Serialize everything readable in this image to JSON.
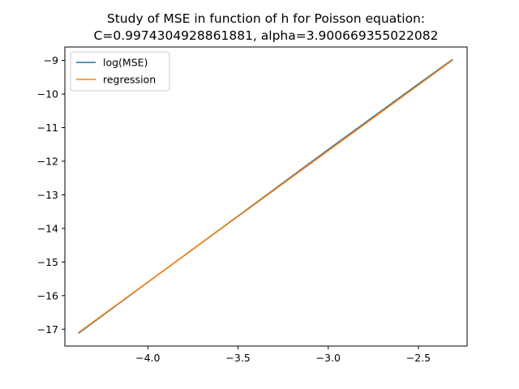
{
  "chart_data": {
    "type": "line",
    "title_lines": [
      "Study of MSE in function of h for Poisson equation:",
      "C=0.9974304928861881, alpha=3.900669355022082"
    ],
    "xlabel": "",
    "ylabel": "",
    "xlim": [
      -4.46,
      -2.23
    ],
    "ylim": [
      -17.5,
      -8.6
    ],
    "xticks": [
      -4.0,
      -3.5,
      -3.0,
      -2.5
    ],
    "xtick_labels": [
      "−4.0",
      "−3.5",
      "−3.0",
      "−2.5"
    ],
    "yticks": [
      -17,
      -16,
      -15,
      -14,
      -13,
      -12,
      -11,
      -10,
      -9
    ],
    "ytick_labels": [
      "−17",
      "−16",
      "−15",
      "−14",
      "−13",
      "−12",
      "−11",
      "−10",
      "−9"
    ],
    "grid": false,
    "legend_position": "upper-left",
    "series": [
      {
        "name": "log(MSE)",
        "color": "#1f77b4",
        "x": [
          -4.382,
          -4.0,
          -3.5,
          -3.0,
          -2.5,
          -2.313
        ],
        "y": [
          -17.11,
          -15.6,
          -13.63,
          -11.65,
          -9.7,
          -8.98
        ]
      },
      {
        "name": "regression",
        "color": "#ff7f0e",
        "x": [
          -4.382,
          -2.313
        ],
        "y": [
          -17.09,
          -9.0
        ]
      }
    ]
  }
}
